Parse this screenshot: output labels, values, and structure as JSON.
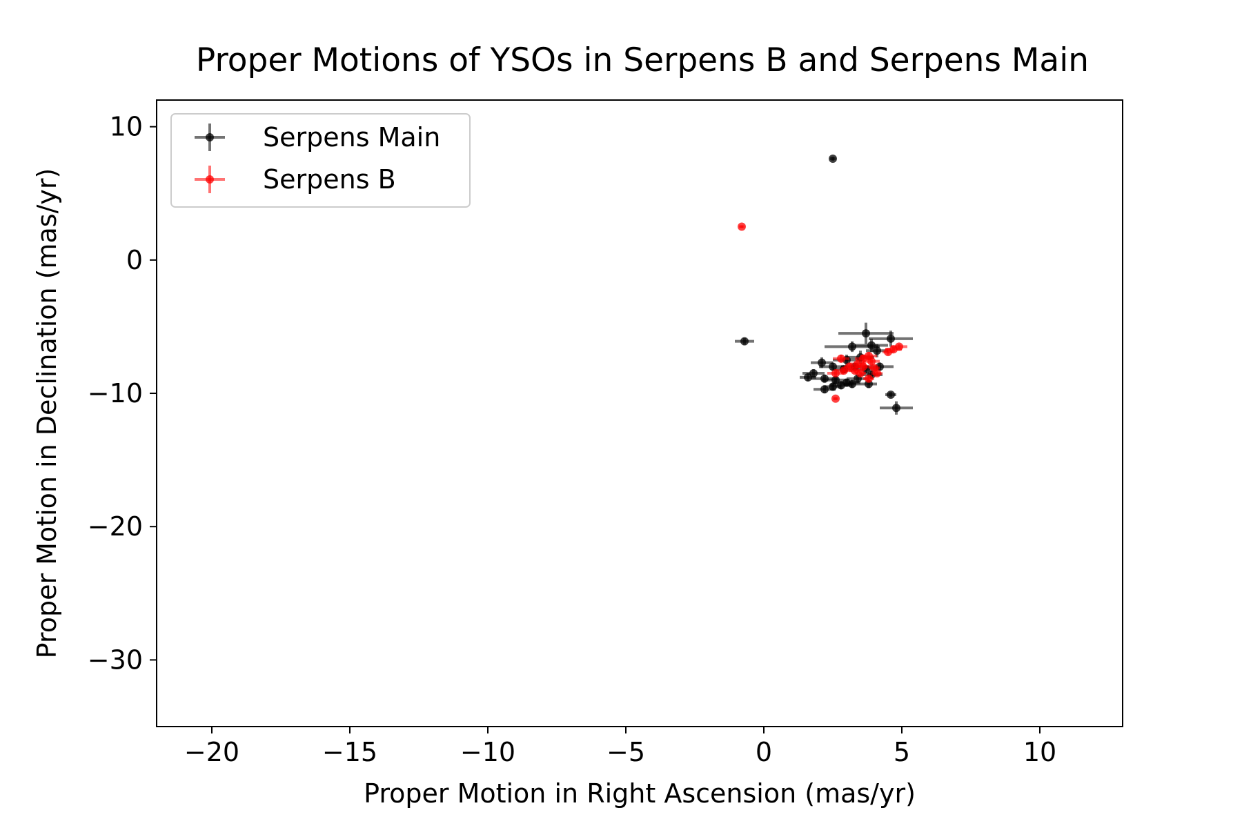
{
  "chart_data": {
    "type": "scatter",
    "title": "Proper Motions of YSOs in Serpens B and Serpens Main",
    "xlabel": "Proper Motion in Right Ascension (mas/yr)",
    "ylabel": "Proper Motion in Declination (mas/yr)",
    "xlim": [
      -22,
      13
    ],
    "ylim": [
      -35,
      12
    ],
    "xticks": [
      -20,
      -15,
      -10,
      -5,
      0,
      5,
      10
    ],
    "yticks": [
      -30,
      -20,
      -10,
      0,
      10
    ],
    "xtick_labels": [
      "−20",
      "−15",
      "−10",
      "−5",
      "0",
      "5",
      "10"
    ],
    "ytick_labels": [
      "−30",
      "−20",
      "−10",
      "0",
      "10"
    ],
    "grid": false,
    "legend_position": "top-left",
    "series": [
      {
        "name": "Serpens Main",
        "color": "#000000",
        "points": [
          {
            "x": 2.5,
            "y": 7.6,
            "xerr": 0.1,
            "yerr": 0.15
          },
          {
            "x": -0.7,
            "y": -6.1,
            "xerr": 0.35,
            "yerr": 0.25
          },
          {
            "x": 3.7,
            "y": -5.5,
            "xerr": 1.0,
            "yerr": 0.8
          },
          {
            "x": 4.6,
            "y": -5.9,
            "xerr": 0.8,
            "yerr": 0.6
          },
          {
            "x": 3.9,
            "y": -6.4,
            "xerr": 0.6,
            "yerr": 0.5
          },
          {
            "x": 3.2,
            "y": -6.5,
            "xerr": 1.0,
            "yerr": 0.4
          },
          {
            "x": 4.1,
            "y": -6.8,
            "xerr": 0.4,
            "yerr": 0.5
          },
          {
            "x": 2.1,
            "y": -7.7,
            "xerr": 0.4,
            "yerr": 0.4
          },
          {
            "x": 3.0,
            "y": -7.5,
            "xerr": 0.5,
            "yerr": 0.4
          },
          {
            "x": 3.5,
            "y": -7.3,
            "xerr": 0.5,
            "yerr": 0.5
          },
          {
            "x": 2.5,
            "y": -8.0,
            "xerr": 0.5,
            "yerr": 0.3
          },
          {
            "x": 2.9,
            "y": -8.2,
            "xerr": 0.4,
            "yerr": 0.3
          },
          {
            "x": 3.3,
            "y": -8.0,
            "xerr": 0.5,
            "yerr": 0.3
          },
          {
            "x": 3.7,
            "y": -8.2,
            "xerr": 0.4,
            "yerr": 0.3
          },
          {
            "x": 4.2,
            "y": -8.0,
            "xerr": 0.5,
            "yerr": 0.3
          },
          {
            "x": 1.8,
            "y": -8.5,
            "xerr": 0.4,
            "yerr": 0.3
          },
          {
            "x": 1.6,
            "y": -8.8,
            "xerr": 0.3,
            "yerr": 0.3
          },
          {
            "x": 2.2,
            "y": -8.9,
            "xerr": 0.5,
            "yerr": 0.3
          },
          {
            "x": 2.6,
            "y": -9.0,
            "xerr": 0.5,
            "yerr": 0.3
          },
          {
            "x": 3.0,
            "y": -9.2,
            "xerr": 0.5,
            "yerr": 0.3
          },
          {
            "x": 3.4,
            "y": -8.9,
            "xerr": 0.4,
            "yerr": 0.3
          },
          {
            "x": 3.9,
            "y": -8.6,
            "xerr": 0.4,
            "yerr": 0.3
          },
          {
            "x": 2.8,
            "y": -9.4,
            "xerr": 0.4,
            "yerr": 0.3
          },
          {
            "x": 3.2,
            "y": -9.3,
            "xerr": 0.3,
            "yerr": 0.3
          },
          {
            "x": 3.8,
            "y": -9.3,
            "xerr": 0.3,
            "yerr": 0.3
          },
          {
            "x": 2.2,
            "y": -9.7,
            "xerr": 0.4,
            "yerr": 0.3
          },
          {
            "x": 2.5,
            "y": -9.5,
            "xerr": 0.3,
            "yerr": 0.3
          },
          {
            "x": 4.6,
            "y": -10.1,
            "xerr": 0.2,
            "yerr": 0.2
          },
          {
            "x": 4.8,
            "y": -11.1,
            "xerr": 0.6,
            "yerr": 0.5
          }
        ]
      },
      {
        "name": "Serpens B",
        "color": "#ff0000",
        "points": [
          {
            "x": -0.8,
            "y": 2.5,
            "xerr": 0.1,
            "yerr": 0.1
          },
          {
            "x": 4.9,
            "y": -6.5,
            "xerr": 0.3,
            "yerr": 0.2
          },
          {
            "x": 4.7,
            "y": -6.7,
            "xerr": 0.3,
            "yerr": 0.2
          },
          {
            "x": 4.5,
            "y": -6.9,
            "xerr": 0.2,
            "yerr": 0.2
          },
          {
            "x": 3.8,
            "y": -7.2,
            "xerr": 0.3,
            "yerr": 0.3
          },
          {
            "x": 2.8,
            "y": -7.4,
            "xerr": 0.3,
            "yerr": 0.3
          },
          {
            "x": 3.6,
            "y": -7.4,
            "xerr": 0.3,
            "yerr": 0.3
          },
          {
            "x": 3.9,
            "y": -7.6,
            "xerr": 0.3,
            "yerr": 0.3
          },
          {
            "x": 3.4,
            "y": -7.8,
            "xerr": 0.3,
            "yerr": 0.3
          },
          {
            "x": 3.1,
            "y": -8.0,
            "xerr": 0.2,
            "yerr": 0.2
          },
          {
            "x": 3.6,
            "y": -8.0,
            "xerr": 0.3,
            "yerr": 0.3
          },
          {
            "x": 4.0,
            "y": -8.1,
            "xerr": 0.2,
            "yerr": 0.2
          },
          {
            "x": 2.9,
            "y": -8.3,
            "xerr": 0.3,
            "yerr": 0.2
          },
          {
            "x": 3.3,
            "y": -8.3,
            "xerr": 0.2,
            "yerr": 0.2
          },
          {
            "x": 2.6,
            "y": -8.5,
            "xerr": 0.3,
            "yerr": 0.2
          },
          {
            "x": 3.5,
            "y": -8.5,
            "xerr": 0.2,
            "yerr": 0.2
          },
          {
            "x": 4.1,
            "y": -8.5,
            "xerr": 0.2,
            "yerr": 0.2
          },
          {
            "x": 3.8,
            "y": -8.9,
            "xerr": 0.2,
            "yerr": 0.2
          },
          {
            "x": 2.6,
            "y": -10.4,
            "xerr": 0.1,
            "yerr": 0.1
          }
        ]
      }
    ]
  }
}
